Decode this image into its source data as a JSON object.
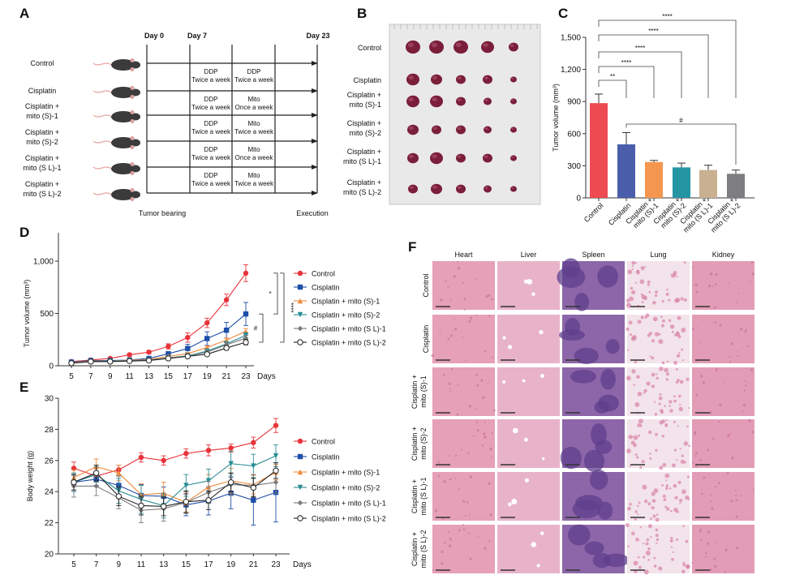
{
  "panel_labels": {
    "a": "A",
    "b": "B",
    "c": "C",
    "d": "D",
    "e": "E",
    "f": "F"
  },
  "schematic": {
    "mouse_icon": "mouse-icon",
    "days": [
      "Day 0",
      "Day 7",
      "Day 23"
    ],
    "groups": [
      [
        "Control"
      ],
      [
        "Cisplatin"
      ],
      [
        "Cisplatin +",
        "mito (S)-1"
      ],
      [
        "Cisplatin +",
        "mito (S)-2"
      ],
      [
        "Cisplatin +",
        "mito (S L)-1"
      ],
      [
        "Cisplatin +",
        "mito (S L)-2"
      ]
    ],
    "treatments": [
      [
        [
          "DDP",
          "Twice a week"
        ],
        [
          "DDP",
          "Twice a week"
        ]
      ],
      [
        [
          "DDP",
          "Twice a week"
        ],
        [
          "Mito",
          "Once a week"
        ]
      ],
      [
        [
          "DDP",
          "Twice a week"
        ],
        [
          "Mito",
          "Twice a week"
        ]
      ],
      [
        [
          "DDP",
          "Twice a week"
        ],
        [
          "Mito",
          "Once a week"
        ]
      ],
      [
        [
          "DDP",
          "Twice a week"
        ],
        [
          "Mito",
          "Twice a week"
        ]
      ]
    ],
    "footer": [
      "Tumor bearing",
      "Execution"
    ]
  },
  "tumor_photo": {
    "row_labels": [
      [
        "Control"
      ],
      [
        "Cisplatin"
      ],
      [
        "Cisplatin +",
        "mito (S)-1"
      ],
      [
        "Cisplatin +",
        "mito (S)-2"
      ],
      [
        "Cisplatin +",
        "mito (S L)-1"
      ],
      [
        "Cisplatin +",
        "mito (S L)-2"
      ]
    ],
    "tumor_color": "#7a1e3a"
  },
  "chart_data": [
    {
      "type": "bar",
      "panel": "C",
      "categories": [
        [
          "Control"
        ],
        [
          "Cisplatin"
        ],
        [
          "Cisplatin +",
          "mito (S)-1"
        ],
        [
          "Cisplatin +",
          "mito (S)-2"
        ],
        [
          "Cisplatin +",
          "mito (S L)-1"
        ],
        [
          "Cisplatin +",
          "mito (S L)-2"
        ]
      ],
      "values": [
        885,
        500,
        335,
        285,
        260,
        225
      ],
      "errors": [
        85,
        110,
        15,
        40,
        45,
        35
      ],
      "colors": [
        "#ee4a52",
        "#4a5eab",
        "#f4964f",
        "#2595a4",
        "#c8b091",
        "#7d7d82"
      ],
      "ylabel": "Tumor volume (mm³)",
      "ylim": [
        0,
        1500
      ],
      "yticks": [
        "0",
        "300",
        "600",
        "900",
        "1,200",
        "1,500"
      ],
      "ytick_values": [
        0,
        300,
        600,
        900,
        1200,
        1500
      ],
      "annotations": [
        {
          "from": 0,
          "to": 1,
          "label": "**"
        },
        {
          "from": 0,
          "to": 2,
          "label": "****"
        },
        {
          "from": 0,
          "to": 3,
          "label": "****"
        },
        {
          "from": 0,
          "to": 4,
          "label": "****"
        },
        {
          "from": 0,
          "to": 5,
          "label": "****"
        },
        {
          "from": 1,
          "to": 5,
          "label": "#"
        }
      ]
    },
    {
      "type": "line",
      "panel": "D",
      "x": [
        5,
        7,
        9,
        11,
        13,
        15,
        17,
        19,
        21,
        23
      ],
      "xticks": [
        "5",
        "7",
        "9",
        "11",
        "13",
        "15",
        "17",
        "19",
        "21",
        "23"
      ],
      "xlabel": "Days",
      "ylabel": "Tumor volume (mm³)",
      "ylim": [
        0,
        1000
      ],
      "yticks": [
        "0",
        "500",
        "1,000"
      ],
      "ytick_values": [
        0,
        500,
        1000
      ],
      "series": [
        {
          "name": "Control",
          "color": "#e8333a",
          "marker": "circle",
          "values": [
            40,
            55,
            70,
            105,
            130,
            185,
            270,
            410,
            630,
            885
          ],
          "errors": [
            8,
            8,
            10,
            12,
            15,
            25,
            45,
            45,
            55,
            80
          ]
        },
        {
          "name": "Cisplatin",
          "color": "#1e4fa8",
          "marker": "square",
          "values": [
            35,
            50,
            50,
            55,
            70,
            115,
            165,
            260,
            340,
            495
          ],
          "errors": [
            6,
            8,
            8,
            10,
            12,
            20,
            40,
            65,
            75,
            110
          ]
        },
        {
          "name": "Cisplatin + mito (S)-1",
          "color": "#f08a3c",
          "marker": "triangle-up",
          "values": [
            30,
            45,
            45,
            55,
            60,
            90,
            115,
            175,
            245,
            330
          ],
          "errors": [
            5,
            6,
            6,
            8,
            8,
            10,
            12,
            15,
            20,
            25
          ]
        },
        {
          "name": "Cisplatin + mito (S)-2",
          "color": "#2a8c94",
          "marker": "triangle-down",
          "values": [
            25,
            40,
            45,
            50,
            55,
            75,
            95,
            140,
            210,
            290
          ],
          "errors": [
            5,
            6,
            6,
            8,
            8,
            10,
            12,
            15,
            20,
            25
          ]
        },
        {
          "name": "Cisplatin + mito (S L)-1",
          "color": "#7a7a7a",
          "marker": "diamond",
          "values": [
            25,
            40,
            40,
            50,
            55,
            75,
            90,
            130,
            200,
            265
          ],
          "errors": [
            5,
            6,
            6,
            8,
            8,
            10,
            12,
            15,
            20,
            25
          ]
        },
        {
          "name": "Cisplatin + mito (S L)-2",
          "color": "#222222",
          "marker": "open-circle",
          "values": [
            25,
            40,
            40,
            45,
            50,
            70,
            90,
            110,
            170,
            225
          ],
          "errors": [
            5,
            6,
            6,
            8,
            8,
            10,
            12,
            15,
            20,
            25
          ]
        }
      ],
      "annotations": [
        {
          "from": 0,
          "to": 1,
          "label": "*"
        },
        {
          "from": 0,
          "to": 5,
          "label": "****"
        },
        {
          "from": 1,
          "to": 5,
          "label": "#"
        }
      ]
    },
    {
      "type": "line",
      "panel": "E",
      "x": [
        5,
        7,
        9,
        11,
        13,
        15,
        17,
        19,
        21,
        23
      ],
      "xticks": [
        "5",
        "7",
        "9",
        "11",
        "13",
        "15",
        "17",
        "19",
        "21",
        "23"
      ],
      "xlabel": "Days",
      "ylabel": "Body weight (g)",
      "ylim": [
        20,
        30
      ],
      "yticks": [
        "20",
        "22",
        "24",
        "26",
        "28",
        "30"
      ],
      "ytick_values": [
        20,
        22,
        24,
        26,
        28,
        30
      ],
      "series": [
        {
          "name": "Control",
          "color": "#e8333a",
          "marker": "circle",
          "values": [
            25.5,
            25.0,
            25.4,
            26.2,
            26.0,
            26.45,
            26.65,
            26.8,
            27.15,
            28.25
          ],
          "errors": [
            0.4,
            0.3,
            0.3,
            0.3,
            0.3,
            0.3,
            0.35,
            0.25,
            0.35,
            0.45
          ]
        },
        {
          "name": "Cisplatin",
          "color": "#1e4fa8",
          "marker": "square",
          "values": [
            24.6,
            24.8,
            24.4,
            23.75,
            23.7,
            23.15,
            23.4,
            23.9,
            23.45,
            23.95
          ],
          "errors": [
            0.5,
            0.4,
            0.6,
            0.7,
            0.6,
            0.7,
            0.9,
            1.0,
            1.6,
            1.9
          ]
        },
        {
          "name": "Cisplatin + mito (S)-1",
          "color": "#f08a3c",
          "marker": "triangle-up",
          "values": [
            24.9,
            25.6,
            25.2,
            23.8,
            23.9,
            23.3,
            24.3,
            24.7,
            24.45,
            25.25
          ],
          "errors": [
            0.5,
            0.5,
            0.5,
            0.7,
            0.7,
            0.6,
            0.8,
            0.8,
            0.6,
            0.5
          ]
        },
        {
          "name": "Cisplatin + mito (S)-2",
          "color": "#2a8c94",
          "marker": "triangle-down",
          "values": [
            24.6,
            25.1,
            24.05,
            23.5,
            23.1,
            24.4,
            24.7,
            25.8,
            25.65,
            26.3
          ],
          "errors": [
            0.6,
            0.5,
            0.8,
            0.9,
            0.8,
            0.7,
            0.75,
            0.8,
            0.75,
            0.7
          ]
        },
        {
          "name": "Cisplatin + mito (S L)-1",
          "color": "#7a7a7a",
          "marker": "diamond",
          "values": [
            24.35,
            24.35,
            23.6,
            22.8,
            22.9,
            23.3,
            23.95,
            24.45,
            24.4,
            24.6
          ],
          "errors": [
            0.7,
            0.6,
            0.7,
            0.8,
            0.8,
            0.7,
            0.7,
            0.7,
            0.7,
            0.7
          ]
        },
        {
          "name": "Cisplatin + mito (S L)-2",
          "color": "#222222",
          "marker": "open-circle",
          "values": [
            24.6,
            25.2,
            23.7,
            23.1,
            23.05,
            23.35,
            23.45,
            24.6,
            24.25,
            25.35
          ],
          "errors": [
            0.5,
            0.5,
            0.6,
            0.6,
            0.6,
            0.7,
            0.6,
            0.6,
            0.6,
            0.5
          ]
        }
      ]
    }
  ],
  "histology": {
    "columns": [
      "Heart",
      "Liver",
      "Spleen",
      "Lung",
      "Kidney"
    ],
    "rows": [
      [
        "Control"
      ],
      [
        "Cisplatin"
      ],
      [
        "Cisplatin +",
        "mito (S)-1"
      ],
      [
        "Cisplatin +",
        "mito (S)-2"
      ],
      [
        "Cisplatin +",
        "mito (S L)-1"
      ],
      [
        "Cisplatin +",
        "mito (S L)-2"
      ]
    ],
    "tissue_colors": [
      "#e6a0b8",
      "#e8b3c8",
      "#8c66a8",
      "#f3e3ea",
      "#e39cb6"
    ]
  }
}
